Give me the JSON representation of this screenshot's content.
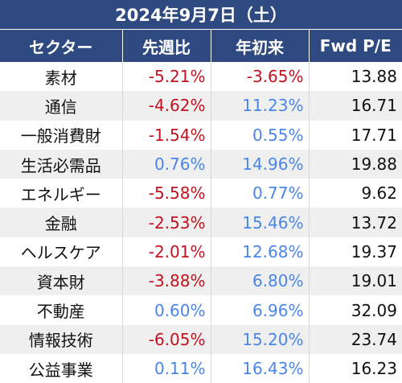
{
  "title": "2024年9月7日（土）",
  "headers": [
    "セクター",
    "先週比",
    "年初来",
    "Fwd P/E"
  ],
  "colors": {
    "header_bg": "#2f4a80",
    "negative": "#c1121f",
    "positive": "#4a86e8"
  },
  "rows": [
    {
      "sector": "素材",
      "week": "-5.21%",
      "week_sign": "neg",
      "ytd": "-3.65%",
      "ytd_sign": "neg",
      "pe": "13.88"
    },
    {
      "sector": "通信",
      "week": "-4.62%",
      "week_sign": "neg",
      "ytd": "11.23%",
      "ytd_sign": "pos",
      "pe": "16.71"
    },
    {
      "sector": "一般消費財",
      "week": "-1.54%",
      "week_sign": "neg",
      "ytd": "0.55%",
      "ytd_sign": "pos",
      "pe": "17.71"
    },
    {
      "sector": "生活必需品",
      "week": "0.76%",
      "week_sign": "pos",
      "ytd": "14.96%",
      "ytd_sign": "pos",
      "pe": "19.88"
    },
    {
      "sector": "エネルギー",
      "week": "-5.58%",
      "week_sign": "neg",
      "ytd": "0.77%",
      "ytd_sign": "pos",
      "pe": "9.62"
    },
    {
      "sector": "金融",
      "week": "-2.53%",
      "week_sign": "neg",
      "ytd": "15.46%",
      "ytd_sign": "pos",
      "pe": "13.72"
    },
    {
      "sector": "ヘルスケア",
      "week": "-2.01%",
      "week_sign": "neg",
      "ytd": "12.68%",
      "ytd_sign": "pos",
      "pe": "19.37"
    },
    {
      "sector": "資本財",
      "week": "-3.88%",
      "week_sign": "neg",
      "ytd": "6.80%",
      "ytd_sign": "pos",
      "pe": "19.01"
    },
    {
      "sector": "不動産",
      "week": "0.60%",
      "week_sign": "pos",
      "ytd": "6.96%",
      "ytd_sign": "pos",
      "pe": "32.09"
    },
    {
      "sector": "情報技術",
      "week": "-6.05%",
      "week_sign": "neg",
      "ytd": "15.20%",
      "ytd_sign": "pos",
      "pe": "23.74"
    },
    {
      "sector": "公益事業",
      "week": "0.11%",
      "week_sign": "pos",
      "ytd": "16.43%",
      "ytd_sign": "pos",
      "pe": "16.23"
    }
  ]
}
